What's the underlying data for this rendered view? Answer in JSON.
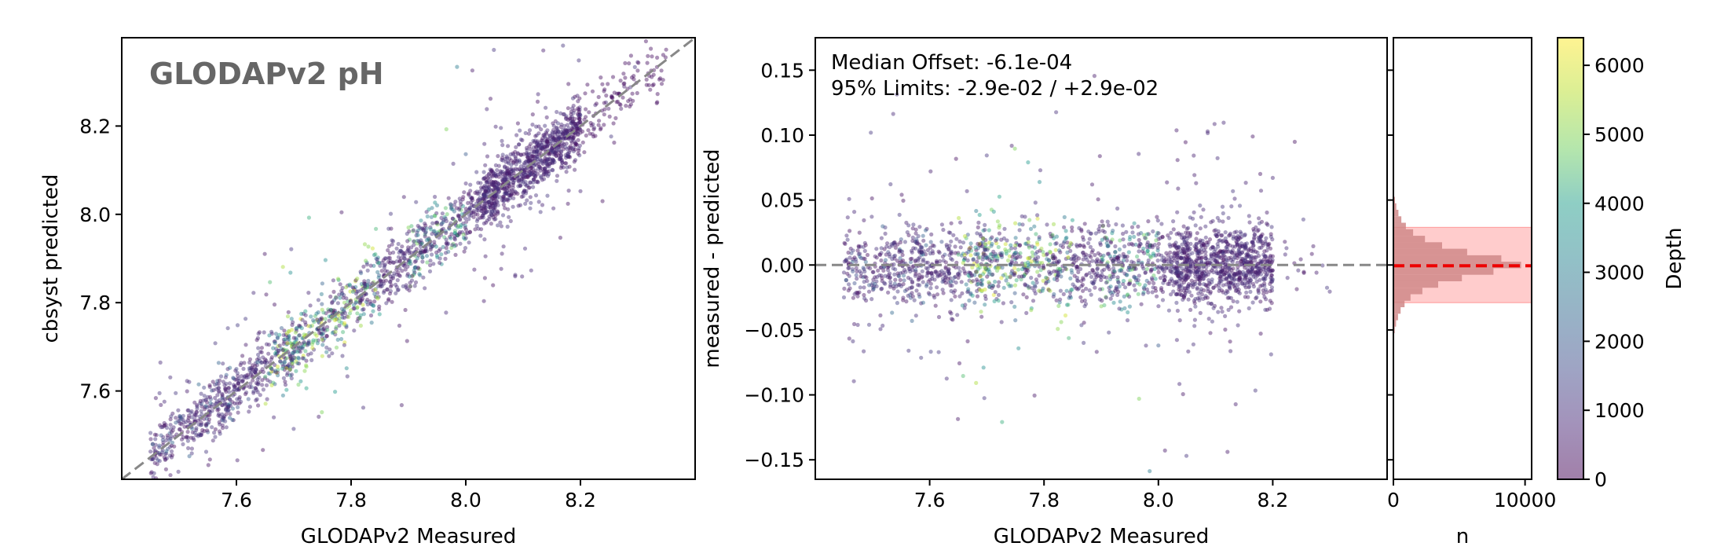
{
  "chart_data": [
    {
      "type": "scatter",
      "title": "GLODAPv2 pH",
      "xlabel": "GLODAPv2 Measured",
      "ylabel": "cbsyst predicted",
      "xlim": [
        7.4,
        8.4
      ],
      "ylim": [
        7.4,
        8.4
      ],
      "xticks": [
        "7.6",
        "7.8",
        "8.0",
        "8.2"
      ],
      "yticks": [
        "7.6",
        "7.8",
        "8.0",
        "8.2"
      ],
      "reference_line": "1:1 dashed grey",
      "data_range": {
        "x": [
          7.48,
          8.35
        ],
        "y": [
          7.48,
          8.35
        ]
      },
      "colored_by": "Depth"
    },
    {
      "type": "scatter",
      "xlabel": "GLODAPv2 Measured",
      "ylabel": "measured - predicted",
      "xlim": [
        7.4,
        8.4
      ],
      "ylim": [
        -0.165,
        0.175
      ],
      "xticks": [
        "7.6",
        "7.8",
        "8.0",
        "8.2"
      ],
      "yticks": [
        "−0.15",
        "−0.10",
        "−0.05",
        "0.00",
        "0.05",
        "0.10",
        "0.15"
      ],
      "reference_line": "y = 0 dashed grey",
      "annotations": [
        "Median Offset: -6.1e-04",
        "95% Limits: -2.9e-02 / +2.9e-02"
      ],
      "median_offset": -0.00061,
      "limits_95": [
        -0.029,
        0.029
      ],
      "colored_by": "Depth"
    },
    {
      "type": "bar",
      "orientation": "horizontal histogram",
      "xlabel": "n",
      "xlim": [
        0,
        10500
      ],
      "xticks": [
        "0",
        "10000"
      ],
      "ylim": [
        -0.165,
        0.175
      ],
      "bins": [
        {
          "y": -0.05,
          "n": 100
        },
        {
          "y": -0.045,
          "n": 200
        },
        {
          "y": -0.04,
          "n": 350
        },
        {
          "y": -0.035,
          "n": 550
        },
        {
          "y": -0.03,
          "n": 850
        },
        {
          "y": -0.025,
          "n": 1300
        },
        {
          "y": -0.02,
          "n": 2200
        },
        {
          "y": -0.015,
          "n": 3400
        },
        {
          "y": -0.01,
          "n": 5200
        },
        {
          "y": -0.005,
          "n": 7600
        },
        {
          "y": 0.0,
          "n": 9700
        },
        {
          "y": 0.005,
          "n": 8200
        },
        {
          "y": 0.01,
          "n": 5600
        },
        {
          "y": 0.015,
          "n": 3700
        },
        {
          "y": 0.02,
          "n": 2400
        },
        {
          "y": 0.025,
          "n": 1500
        },
        {
          "y": 0.03,
          "n": 950
        },
        {
          "y": 0.035,
          "n": 600
        },
        {
          "y": 0.04,
          "n": 380
        },
        {
          "y": 0.045,
          "n": 220
        },
        {
          "y": 0.05,
          "n": 120
        }
      ],
      "median_line": -0.00061,
      "limits_band": [
        -0.029,
        0.029
      ]
    },
    {
      "type": "colorbar",
      "label": "Depth",
      "range": [
        0,
        6400
      ],
      "ticks": [
        "0",
        "1000",
        "2000",
        "3000",
        "4000",
        "5000",
        "6000"
      ]
    }
  ],
  "colors": {
    "viridis": [
      "#440154",
      "#482777",
      "#3f4a8a",
      "#31678e",
      "#26838f",
      "#1f9d8a",
      "#6cce5a",
      "#b6de2b",
      "#fee825"
    ],
    "reference_line": "#888888",
    "median_line": "#ee0000",
    "limits_band": "#ff9999",
    "histogram": "#d08888",
    "title": "#666666"
  }
}
